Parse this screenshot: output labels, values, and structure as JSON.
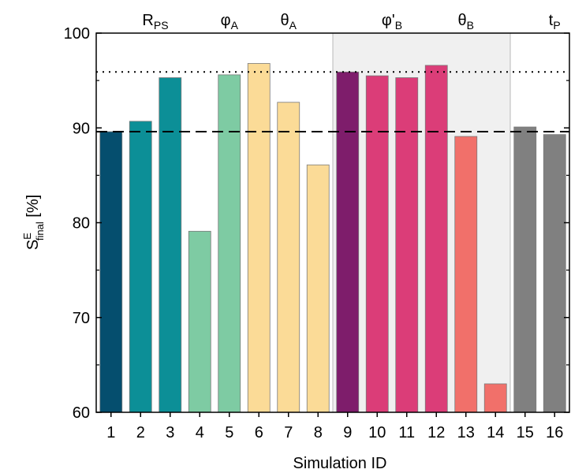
{
  "chart_data": {
    "type": "bar",
    "xlabel": "Simulation ID",
    "ylabel": {
      "base": "S",
      "sup": "E",
      "sub": "final",
      "unit": " [%]"
    },
    "ylim": [
      60,
      100
    ],
    "yticks": [
      60,
      70,
      80,
      90,
      100
    ],
    "categories": [
      "1",
      "2",
      "3",
      "4",
      "5",
      "6",
      "7",
      "8",
      "9",
      "10",
      "11",
      "12",
      "13",
      "14",
      "15",
      "16"
    ],
    "values": [
      89.6,
      90.7,
      95.3,
      79.1,
      95.6,
      96.8,
      92.7,
      86.1,
      95.9,
      95.5,
      95.3,
      96.6,
      89.1,
      63.0,
      90.1,
      89.3
    ],
    "bar_colors": [
      "#054e6e",
      "#0c8f97",
      "#0c8f97",
      "#7ecba3",
      "#7ecba3",
      "#fbdb97",
      "#fbdb97",
      "#fbdb97",
      "#7e1d6b",
      "#db3d78",
      "#db3d78",
      "#db3d78",
      "#f1706a",
      "#f1706a",
      "#808080",
      "#808080"
    ],
    "reference_lines": [
      {
        "value": 89.6,
        "style": "dashed"
      },
      {
        "value": 95.9,
        "style": "dotted"
      }
    ],
    "shaded_region": {
      "from_category": "9",
      "to_category": "14",
      "color": "#f0f0f0"
    },
    "groups": [
      {
        "base": "R",
        "sub": "PS",
        "center": 2
      },
      {
        "base": "φ",
        "sub": "A",
        "center": 4.5
      },
      {
        "base": "θ",
        "sub": "A",
        "center": 6.5
      },
      {
        "base": "φ'",
        "sub": "B",
        "center": 10
      },
      {
        "base": "θ",
        "sub": "B",
        "center": 12.5
      },
      {
        "base": "t",
        "sub": "P",
        "center": 15.5
      }
    ],
    "grid": false,
    "legend": "none"
  }
}
